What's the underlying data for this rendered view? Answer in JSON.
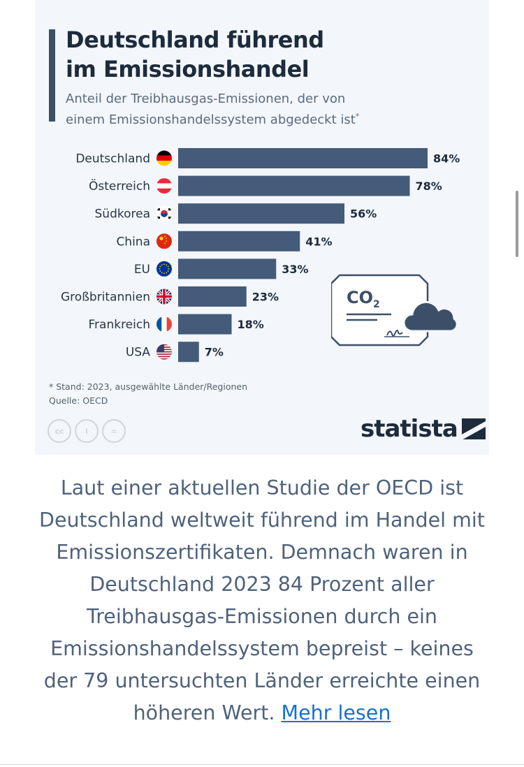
{
  "header": {
    "title_line1": "Deutschland führend",
    "title_line2": "im Emissionshandel",
    "subtitle_line1": "Anteil der Treibhausgas-Emissionen, der von",
    "subtitle_line2": "einem Emissionshandelssystem abgedeckt ist",
    "subtitle_mark": "*"
  },
  "chart_data": {
    "type": "bar",
    "orientation": "horizontal",
    "categories": [
      "Deutschland",
      "Österreich",
      "Südkorea",
      "China",
      "EU",
      "Großbritannien",
      "Frankreich",
      "USA"
    ],
    "values": [
      84,
      78,
      56,
      41,
      33,
      23,
      18,
      7
    ],
    "value_labels": [
      "84%",
      "78%",
      "56%",
      "41%",
      "33%",
      "23%",
      "18%",
      "7%"
    ],
    "flags": [
      "de-flag-icon",
      "at-flag-icon",
      "kr-flag-icon",
      "cn-flag-icon",
      "eu-flag-icon",
      "gb-flag-icon",
      "fr-flag-icon",
      "us-flag-icon"
    ],
    "xlim": [
      0,
      84
    ],
    "bar_color": "#445b79"
  },
  "illustration": {
    "co2_label": "CO",
    "co2_subscript": "2"
  },
  "footnote": {
    "note": "* Stand: 2023, ausgewählte Länder/Regionen",
    "source": "Quelle: OECD"
  },
  "license_icons": [
    {
      "name": "cc-icon",
      "glyph": "cc"
    },
    {
      "name": "person-icon",
      "glyph": "i"
    },
    {
      "name": "equals-icon",
      "glyph": "="
    }
  ],
  "brand": {
    "logo": "statista"
  },
  "description": {
    "text": "Laut einer aktuellen Studie der OECD ist Deutschland weltweit führend im Handel mit Emissionszertifikaten. Demnach waren in Deutschland 2023 84 Prozent aller Treibhausgas-Emissionen durch ein Emissionshandelssystem bepreist – keines der 79 untersuchten Länder erreichte einen höheren Wert.",
    "link_label": "Mehr lesen"
  },
  "colors": {
    "card_background": "#f3f6fa",
    "title": "#1d2b3c",
    "bar": "#445b79",
    "link": "#1a6fd1"
  }
}
